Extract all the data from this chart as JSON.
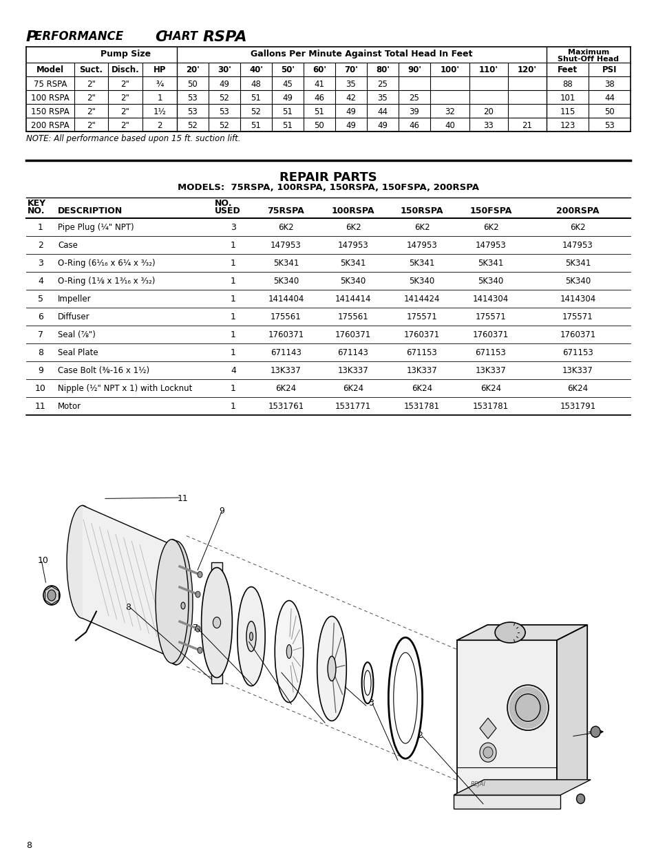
{
  "bg_color": "#ffffff",
  "page_title_sc": "Performance Chart ",
  "page_title_bold": "RSPA",
  "perf_note": "NOTE: All performance based upon 15 ft. suction lift.",
  "perf_headers2": [
    "Model",
    "Suct.",
    "Disch.",
    "HP",
    "20'",
    "30'",
    "40'",
    "50'",
    "60'",
    "70'",
    "80'",
    "90'",
    "100'",
    "110'",
    "120'",
    "Feet",
    "PSI"
  ],
  "perf_rows": [
    [
      "75 RSPA",
      "2\"",
      "2\"",
      "¾",
      "50",
      "49",
      "48",
      "45",
      "41",
      "35",
      "25",
      "",
      "",
      "",
      "",
      "88",
      "38"
    ],
    [
      "100 RSPA",
      "2\"",
      "2\"",
      "1",
      "53",
      "52",
      "51",
      "49",
      "46",
      "42",
      "35",
      "25",
      "",
      "",
      "",
      "101",
      "44"
    ],
    [
      "150 RSPA",
      "2\"",
      "2\"",
      "1½",
      "53",
      "53",
      "52",
      "51",
      "51",
      "49",
      "44",
      "39",
      "32",
      "20",
      "",
      "115",
      "50"
    ],
    [
      "200 RSPA",
      "2\"",
      "2\"",
      "2",
      "52",
      "52",
      "51",
      "51",
      "50",
      "49",
      "49",
      "46",
      "40",
      "33",
      "21",
      "123",
      "53"
    ]
  ],
  "repair_title1": "REPAIR PARTS",
  "repair_title2": "MODELS:  75RSPA, 100RSPA, 150RSPA, 150FSPA, 200RSPA",
  "repair_headers": [
    "KEY\nNO.",
    "DESCRIPTION",
    "NO.\nUSED",
    "75RSPA",
    "100RSPA",
    "150RSPA",
    "150FSPA",
    "200RSPA"
  ],
  "repair_rows": [
    [
      "1",
      "Pipe Plug (¼\" NPT)",
      "3",
      "6K2",
      "6K2",
      "6K2",
      "6K2",
      "6K2"
    ],
    [
      "2",
      "Case",
      "1",
      "147953",
      "147953",
      "147953",
      "147953",
      "147953"
    ],
    [
      "3",
      "O-Ring (6¹⁄₁₆ x 6¼ x ³⁄₃₂)",
      "1",
      "5K341",
      "5K341",
      "5K341",
      "5K341",
      "5K341"
    ],
    [
      "4",
      "O-Ring (1⅛ x 1³⁄₁₆ x ³⁄₃₂)",
      "1",
      "5K340",
      "5K340",
      "5K340",
      "5K340",
      "5K340"
    ],
    [
      "5",
      "Impeller",
      "1",
      "1414404",
      "1414414",
      "1414424",
      "1414304",
      "1414304"
    ],
    [
      "6",
      "Diffuser",
      "1",
      "175561",
      "175561",
      "175571",
      "175571",
      "175571"
    ],
    [
      "7",
      "Seal (⅞\")",
      "1",
      "1760371",
      "1760371",
      "1760371",
      "1760371",
      "1760371"
    ],
    [
      "8",
      "Seal Plate",
      "1",
      "671143",
      "671143",
      "671153",
      "671153",
      "671153"
    ],
    [
      "9",
      "Case Bolt (⅜-16 x 1½)",
      "4",
      "13K337",
      "13K337",
      "13K337",
      "13K337",
      "13K337"
    ],
    [
      "10",
      "Nipple (½\" NPT x 1) with Locknut",
      "1",
      "6K24",
      "6K24",
      "6K24",
      "6K24",
      "6K24"
    ],
    [
      "11",
      "Motor",
      "1",
      "1531761",
      "1531771",
      "1531781",
      "1531781",
      "1531791"
    ]
  ],
  "page_number": "8",
  "col_x_perf": [
    38,
    108,
    157,
    207,
    257,
    303,
    349,
    395,
    441,
    487,
    533,
    579,
    625,
    682,
    738,
    794,
    855,
    916
  ],
  "col_x_repair": [
    38,
    80,
    310,
    368,
    463,
    563,
    663,
    763,
    916
  ]
}
